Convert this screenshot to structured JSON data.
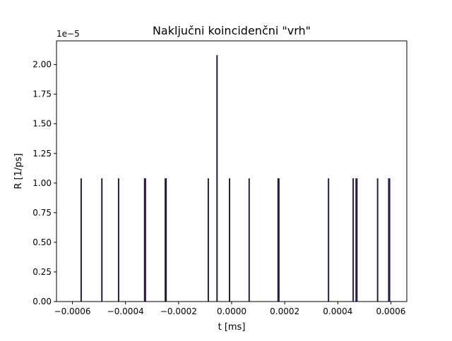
{
  "chart_data": {
    "type": "bar",
    "title": "Naključni koincidenčni \"vrh\"",
    "xlabel": "t [ms]",
    "ylabel": "R [1/ps]",
    "y_offset_label": "1e−5",
    "xlim": [
      -0.00066,
      0.00066
    ],
    "ylim": [
      0,
      2.2
    ],
    "bar_color": "#2d1a45",
    "x_ticks": [
      {
        "value": -0.0006,
        "label": "−0.0006"
      },
      {
        "value": -0.0004,
        "label": "−0.0004"
      },
      {
        "value": -0.0002,
        "label": "−0.0002"
      },
      {
        "value": 0.0,
        "label": "0.0000"
      },
      {
        "value": 0.0002,
        "label": "0.0002"
      },
      {
        "value": 0.0004,
        "label": "0.0004"
      },
      {
        "value": 0.0006,
        "label": "0.0006"
      }
    ],
    "y_ticks": [
      {
        "value": 0.0,
        "label": "0.00"
      },
      {
        "value": 0.25,
        "label": "0.25"
      },
      {
        "value": 0.5,
        "label": "0.50"
      },
      {
        "value": 0.75,
        "label": "0.75"
      },
      {
        "value": 1.0,
        "label": "1.00"
      },
      {
        "value": 1.25,
        "label": "1.25"
      },
      {
        "value": 1.5,
        "label": "1.50"
      },
      {
        "value": 1.75,
        "label": "1.75"
      },
      {
        "value": 2.0,
        "label": "2.00"
      }
    ],
    "x": [
      -0.000567,
      -0.000489,
      -0.000426,
      -0.000328,
      -0.000325,
      -0.00025,
      -0.000247,
      -8.8e-05,
      -5.5e-05,
      -8e-06,
      6.6e-05,
      0.000175,
      0.000178,
      0.000365,
      0.000458,
      0.000469,
      0.000472,
      0.00055,
      0.000592,
      0.000595
    ],
    "values": [
      1.04,
      1.04,
      1.04,
      1.04,
      1.04,
      1.04,
      1.04,
      1.04,
      2.08,
      1.04,
      1.04,
      1.04,
      1.04,
      1.04,
      1.04,
      1.04,
      1.04,
      1.04,
      1.04,
      1.04
    ]
  }
}
